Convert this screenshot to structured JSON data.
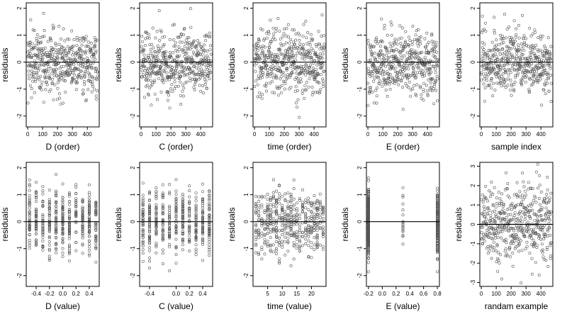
{
  "colors": {
    "points": "#555555",
    "axes": "#000000",
    "background": "#ffffff"
  },
  "chart_data": [
    {
      "type": "scatter",
      "xlabel": "D (order)",
      "ylabel": "residuals",
      "x_kind": "order",
      "n": 470,
      "xlim": [
        -10,
        480
      ],
      "ylim": [
        -2.4,
        2.2
      ],
      "x_ticks": [
        0,
        100,
        200,
        300,
        400
      ],
      "y_ticks": [
        -2,
        -1,
        0,
        1,
        2
      ],
      "reference_line_y": 0,
      "residual_sd": 0.6
    },
    {
      "type": "scatter",
      "xlabel": "C (order)",
      "ylabel": "residuals",
      "x_kind": "order",
      "n": 470,
      "xlim": [
        -10,
        480
      ],
      "ylim": [
        -2.4,
        2.2
      ],
      "x_ticks": [
        0,
        100,
        200,
        300,
        400
      ],
      "y_ticks": [
        -2,
        -1,
        0,
        1,
        2
      ],
      "reference_line_y": 0,
      "residual_sd": 0.6
    },
    {
      "type": "scatter",
      "xlabel": "time (order)",
      "ylabel": "residuals",
      "x_kind": "order",
      "n": 470,
      "xlim": [
        -10,
        480
      ],
      "ylim": [
        -2.4,
        2.2
      ],
      "x_ticks": [
        0,
        100,
        200,
        300,
        400
      ],
      "y_ticks": [
        -2,
        -1,
        0,
        1,
        2
      ],
      "reference_line_y": 0,
      "residual_sd": 0.6
    },
    {
      "type": "scatter",
      "xlabel": "E (order)",
      "ylabel": "residuals",
      "x_kind": "order",
      "n": 470,
      "xlim": [
        -10,
        480
      ],
      "ylim": [
        -2.4,
        2.2
      ],
      "x_ticks": [
        0,
        100,
        200,
        300,
        400
      ],
      "y_ticks": [
        -2,
        -1,
        0,
        1,
        2
      ],
      "reference_line_y": 0,
      "residual_sd": 0.6
    },
    {
      "type": "scatter",
      "xlabel": "sample index",
      "ylabel": "residuals",
      "x_kind": "order",
      "n": 470,
      "xlim": [
        -10,
        480
      ],
      "ylim": [
        -2.4,
        2.2
      ],
      "x_ticks": [
        0,
        100,
        200,
        300,
        400
      ],
      "y_ticks": [
        -2,
        -1,
        0,
        1,
        2
      ],
      "reference_line_y": 0,
      "residual_sd": 0.6
    },
    {
      "type": "scatter",
      "xlabel": "D (value)",
      "ylabel": "residuals",
      "x_kind": "levels",
      "x_levels": [
        -0.5,
        -0.4,
        -0.3,
        -0.2,
        -0.1,
        0.0,
        0.1,
        0.2,
        0.3,
        0.4,
        0.5
      ],
      "n": 470,
      "xlim": [
        -0.55,
        0.55
      ],
      "ylim": [
        -2.4,
        2.2
      ],
      "x_ticks": [
        -0.4,
        -0.2,
        0.0,
        0.2,
        0.4
      ],
      "x_tick_labels": [
        "-0.4",
        "-0.2",
        "0.0",
        "0.2",
        "0.4"
      ],
      "y_ticks": [
        -2,
        -1,
        0,
        1,
        2
      ],
      "reference_line_y": 0,
      "residual_sd": 0.6
    },
    {
      "type": "scatter",
      "xlabel": "C (value)",
      "ylabel": "residuals",
      "x_kind": "levels",
      "x_levels": [
        -0.5,
        -0.4,
        -0.3,
        -0.2,
        -0.1,
        0.0,
        0.1,
        0.2,
        0.3,
        0.4,
        0.5
      ],
      "n": 470,
      "xlim": [
        -0.55,
        0.55
      ],
      "ylim": [
        -2.4,
        2.2
      ],
      "x_ticks": [
        -0.4,
        0.0,
        0.2,
        0.4
      ],
      "x_tick_labels": [
        "-0.4",
        "0.0",
        "0.2",
        "0.4"
      ],
      "y_ticks": [
        -2,
        -1,
        0,
        1,
        2
      ],
      "reference_line_y": 0,
      "residual_sd": 0.6
    },
    {
      "type": "scatter",
      "xlabel": "time (value)",
      "ylabel": "residuals",
      "x_kind": "levels",
      "x_levels": [
        1,
        2,
        3,
        4,
        5,
        6,
        7,
        8,
        9,
        10,
        11,
        12,
        13,
        14,
        15,
        16,
        17,
        18,
        19,
        20,
        21,
        22,
        23,
        24
      ],
      "n": 470,
      "xlim": [
        0,
        25
      ],
      "ylim": [
        -2.4,
        2.2
      ],
      "x_ticks": [
        5,
        10,
        15,
        20
      ],
      "y_ticks": [
        -2,
        -1,
        0,
        1,
        2
      ],
      "reference_line_y": 0,
      "residual_sd": 0.6
    },
    {
      "type": "scatter",
      "xlabel": "E (value)",
      "ylabel": "residuals",
      "x_kind": "weighted-levels",
      "x_levels": [
        -0.2,
        0.3,
        0.8
      ],
      "x_level_weights": [
        0.72,
        0.04,
        0.24
      ],
      "n": 470,
      "xlim": [
        -0.23,
        0.83
      ],
      "ylim": [
        -2.4,
        2.2
      ],
      "x_ticks": [
        -0.2,
        0.0,
        0.2,
        0.4,
        0.6,
        0.8
      ],
      "x_tick_labels": [
        "-0.2",
        "0.0",
        "0.2",
        "0.4",
        "0.6",
        "0.8"
      ],
      "y_ticks": [
        -2,
        -1,
        0,
        1,
        2
      ],
      "reference_line_y": 0,
      "residual_sd": 0.6
    },
    {
      "type": "scatter",
      "xlabel": "randam example",
      "ylabel": "residuals",
      "x_kind": "order",
      "n": 470,
      "xlim": [
        -10,
        480
      ],
      "ylim": [
        -3.2,
        3.2
      ],
      "x_ticks": [
        0,
        100,
        200,
        300,
        400
      ],
      "y_ticks": [
        -3,
        -2,
        -1,
        0,
        1,
        2,
        3
      ],
      "reference_line_y": 0,
      "residual_sd": 1.0
    }
  ]
}
